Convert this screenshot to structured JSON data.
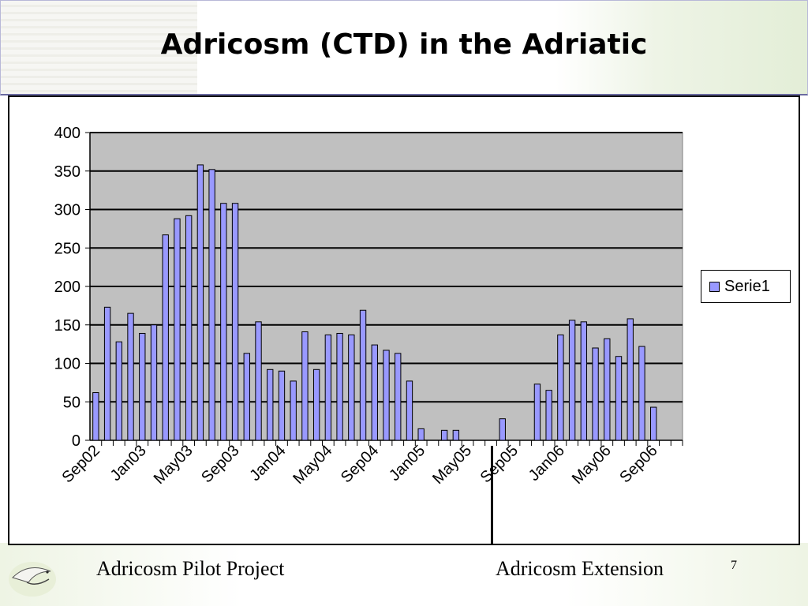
{
  "slide": {
    "title": "Adricosm (CTD) in the Adriatic",
    "footer_left": "Adricosm Pilot Project",
    "footer_right": "Adricosm Extension",
    "page_number": "7"
  },
  "colors": {
    "bar_fill": "#9999ff",
    "plot_background": "#c0c0c0"
  },
  "chart_data": {
    "type": "bar",
    "title": "",
    "xlabel": "",
    "ylabel": "",
    "ylim": [
      0,
      400
    ],
    "yticks": [
      0,
      50,
      100,
      150,
      200,
      250,
      300,
      350,
      400
    ],
    "grid": true,
    "legend_position": "right",
    "categories": [
      "Sep02",
      "Oct02",
      "Nov02",
      "Dec02",
      "Jan03",
      "Feb03",
      "Mar03",
      "Apr03",
      "May03",
      "Jun03",
      "Jul03",
      "Aug03",
      "Sep03",
      "Oct03",
      "Nov03",
      "Dec03",
      "Jan04",
      "Feb04",
      "Mar04",
      "Apr04",
      "May04",
      "Jun04",
      "Jul04",
      "Aug04",
      "Sep04",
      "Oct04",
      "Nov04",
      "Dec04",
      "Jan05",
      "Feb05",
      "Mar05",
      "Apr05",
      "May05",
      "Jun05",
      "Jul05",
      "Aug05",
      "Sep05",
      "Oct05",
      "Nov05",
      "Dec05",
      "Jan06",
      "Feb06",
      "Mar06",
      "Apr06",
      "May06",
      "Jun06",
      "Jul06",
      "Aug06",
      "Sep06",
      "Oct06",
      "Nov06"
    ],
    "tick_labels": [
      "Sep02",
      "Jan03",
      "May03",
      "Sep03",
      "Jan04",
      "May04",
      "Sep04",
      "Jan05",
      "May05",
      "Sep05",
      "Jan06",
      "May06",
      "Sep06"
    ],
    "series": [
      {
        "name": "Serie1",
        "values": [
          62,
          173,
          128,
          165,
          139,
          150,
          267,
          288,
          292,
          358,
          352,
          308,
          308,
          113,
          154,
          92,
          90,
          77,
          141,
          92,
          137,
          139,
          137,
          169,
          124,
          117,
          113,
          77,
          15,
          0,
          13,
          13,
          0,
          0,
          0,
          28,
          0,
          0,
          73,
          65,
          137,
          156,
          154,
          120,
          132,
          109,
          158,
          122,
          43,
          0,
          0
        ]
      }
    ]
  }
}
